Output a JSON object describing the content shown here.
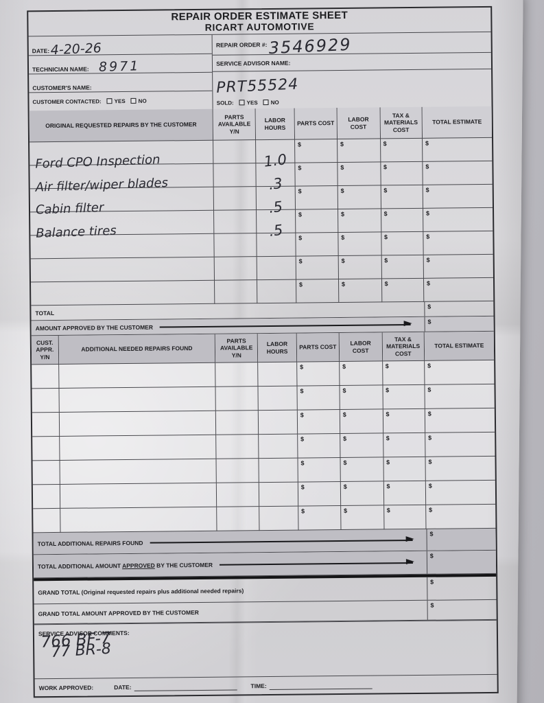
{
  "header": {
    "title_line1": "REPAIR ORDER ESTIMATE SHEET",
    "title_line2": "RICART AUTOMOTIVE"
  },
  "colors": {
    "paper": "#dad9dc",
    "shaded_band": "#bfbec4",
    "ink": "#1d1d20",
    "handwriting_ink": "#2a2a32"
  },
  "top_fields": {
    "date_label": "DATE:",
    "date_value": "4-20-26",
    "technician_label": "TECHNICIAN NAME:",
    "technician_value": "8971",
    "customer_name_label": "CUSTOMER'S NAME:",
    "customer_contacted_label": "CUSTOMER CONTACTED:",
    "yes_label": "YES",
    "no_label": "NO",
    "repair_order_label": "REPAIR ORDER #:",
    "repair_order_value": "3546929",
    "service_advisor_label": "SERVICE ADVISOR NAME:",
    "service_advisor_value": "PRT55524",
    "sold_label": "SOLD:"
  },
  "currency": "$",
  "table1": {
    "col_headers": [
      "ORIGINAL REQUESTED REPAIRS BY THE CUSTOMER",
      "PARTS AVAILABLE Y/N",
      "LABOR HOURS",
      "PARTS COST",
      "LABOR COST",
      "TAX & MATERIALS COST",
      "TOTAL ESTIMATE"
    ],
    "rows": [
      {
        "repair": "Ford CPO Inspection",
        "labor_hours": "1.0"
      },
      {
        "repair": "Air filter/wiper blades",
        "labor_hours": ".3"
      },
      {
        "repair": "Cabin filter",
        "labor_hours": ".5"
      },
      {
        "repair": "Balance tires",
        "labor_hours": ".5"
      },
      {
        "repair": "",
        "labor_hours": ""
      },
      {
        "repair": "",
        "labor_hours": ""
      },
      {
        "repair": "",
        "labor_hours": ""
      }
    ],
    "total_label": "TOTAL",
    "amount_approved_label": "AMOUNT APPROVED BY THE CUSTOMER"
  },
  "table2": {
    "col_headers": [
      "CUST. APPR. Y/N",
      "ADDITIONAL NEEDED REPAIRS FOUND",
      "PARTS AVAILABLE Y/N",
      "LABOR HOURS",
      "PARTS COST",
      "LABOR COST",
      "TAX & MATERIALS COST",
      "TOTAL ESTIMATE"
    ],
    "empty_row_count": 7
  },
  "totals": {
    "additional_found_label": "TOTAL ADDITIONAL REPAIRS FOUND",
    "additional_approved_prefix": "TOTAL ADDITIONAL AMOUNT ",
    "additional_approved_underlined": "APPROVED",
    "additional_approved_suffix": " BY THE CUSTOMER",
    "grand_total_label": "GRAND TOTAL (Original requested repairs plus additional needed repairs)",
    "grand_total_approved_label": "GRAND TOTAL AMOUNT APPROVED BY THE CUSTOMER"
  },
  "comments": {
    "label": "SERVICE ADVISOR COMMENTS:",
    "line1": "766 BF-7",
    "line2": "77 BR-8"
  },
  "footer": {
    "work_approved_label": "WORK APPROVED:",
    "date_label": "DATE:",
    "time_label": "TIME:"
  }
}
